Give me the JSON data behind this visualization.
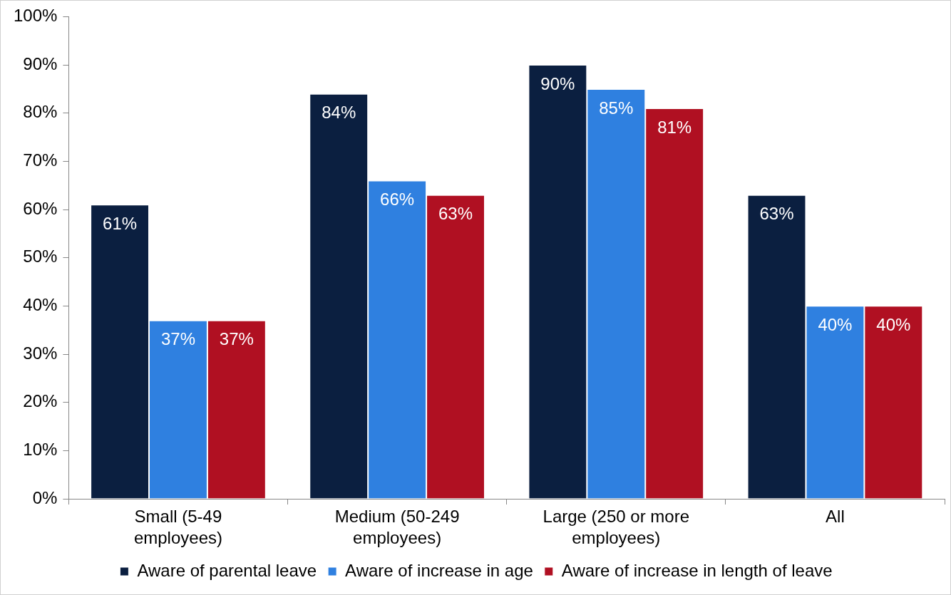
{
  "chart_data": {
    "type": "bar",
    "categories": [
      "Small (5-49 employees)",
      "Medium (50-249 employees)",
      "Large (250 or more employees)",
      "All"
    ],
    "series": [
      {
        "name": "Aware of parental leave",
        "color": "#0b1f40",
        "values": [
          61,
          84,
          90,
          63
        ],
        "value_labels": [
          "61%",
          "84%",
          "90%",
          "63%"
        ]
      },
      {
        "name": "Aware of increase in age",
        "color": "#2f80e0",
        "values": [
          37,
          66,
          85,
          40
        ],
        "value_labels": [
          "37%",
          "66%",
          "85%",
          "40%"
        ]
      },
      {
        "name": "Aware of increase in length of leave",
        "color": "#b01022",
        "values": [
          37,
          63,
          81,
          40
        ],
        "value_labels": [
          "37%",
          "63%",
          "81%",
          "40%"
        ]
      }
    ],
    "ylim": [
      0,
      100
    ],
    "yticks": [
      {
        "value": 0,
        "label": "0%"
      },
      {
        "value": 10,
        "label": "10%"
      },
      {
        "value": 20,
        "label": "20%"
      },
      {
        "value": 30,
        "label": "30%"
      },
      {
        "value": 40,
        "label": "40%"
      },
      {
        "value": 50,
        "label": "50%"
      },
      {
        "value": 60,
        "label": "60%"
      },
      {
        "value": 70,
        "label": "70%"
      },
      {
        "value": 80,
        "label": "80%"
      },
      {
        "value": 90,
        "label": "90%"
      },
      {
        "value": 100,
        "label": "100%"
      }
    ],
    "grid": false,
    "legend": "bottom"
  }
}
